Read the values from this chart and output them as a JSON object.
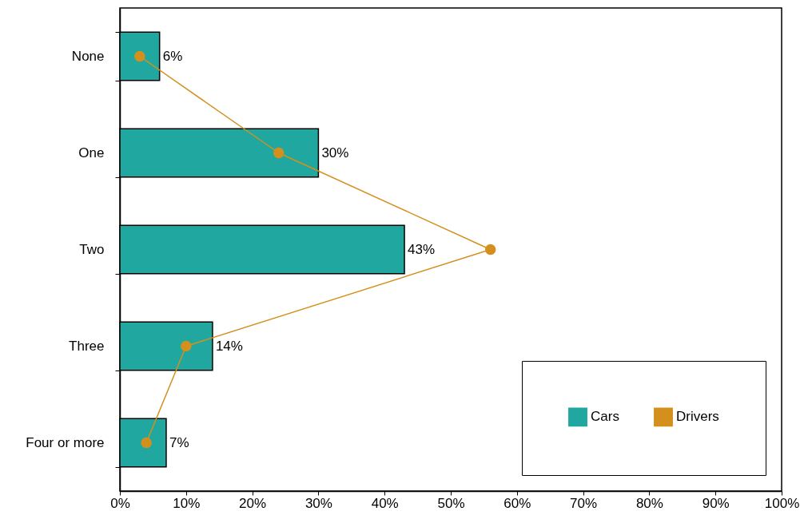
{
  "chart_data": {
    "type": "bar",
    "orientation": "horizontal",
    "categories": [
      "None",
      "One",
      "Two",
      "Three",
      "Four or more"
    ],
    "series": [
      {
        "name": "Cars",
        "color": "#20a8a0",
        "values": [
          6,
          30,
          43,
          14,
          7
        ],
        "value_labels": [
          "6%",
          "30%",
          "43%",
          "14%",
          "7%"
        ]
      },
      {
        "name": "Drivers",
        "type": "line",
        "color": "#d4901c",
        "values": [
          3,
          24,
          56,
          10,
          4
        ]
      }
    ],
    "xlim": [
      0,
      100
    ],
    "xticks": [
      {
        "value": 0,
        "label": "0%"
      },
      {
        "value": 10,
        "label": "10%"
      },
      {
        "value": 20,
        "label": "20%"
      },
      {
        "value": 30,
        "label": "30%"
      },
      {
        "value": 40,
        "label": "40%"
      },
      {
        "value": 50,
        "label": "50%"
      },
      {
        "value": 60,
        "label": "60%"
      },
      {
        "value": 70,
        "label": "70%"
      },
      {
        "value": 80,
        "label": "80%"
      },
      {
        "value": 90,
        "label": "90%"
      },
      {
        "value": 100,
        "label": "100%"
      }
    ],
    "grid": false,
    "legend": "bottom right",
    "marker": "circle",
    "line_style": "solid"
  }
}
